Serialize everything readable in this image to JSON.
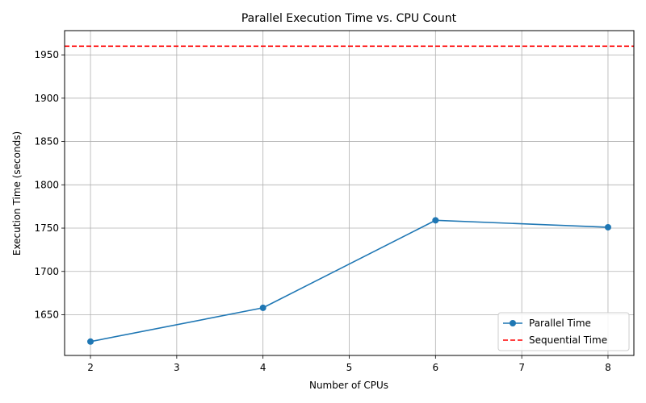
{
  "chart_data": {
    "type": "line",
    "title": "Parallel Execution Time vs. CPU Count",
    "xlabel": "Number of CPUs",
    "ylabel": "Execution Time (seconds)",
    "xlim": [
      1.7,
      8.3
    ],
    "ylim": [
      1603,
      1978
    ],
    "xticks": [
      2,
      3,
      4,
      5,
      6,
      7,
      8
    ],
    "yticks": [
      1650,
      1700,
      1750,
      1800,
      1850,
      1900,
      1950
    ],
    "grid": true,
    "legend_position": "lower-right",
    "series": [
      {
        "name": "Parallel Time",
        "color": "#1f77b4",
        "style": "solid-with-markers",
        "x": [
          2,
          4,
          6,
          8
        ],
        "values": [
          1619,
          1658,
          1759,
          1751
        ]
      }
    ],
    "reference_lines": [
      {
        "name": "Sequential Time",
        "color": "#ff0000",
        "style": "dashed",
        "y": 1960
      }
    ]
  }
}
